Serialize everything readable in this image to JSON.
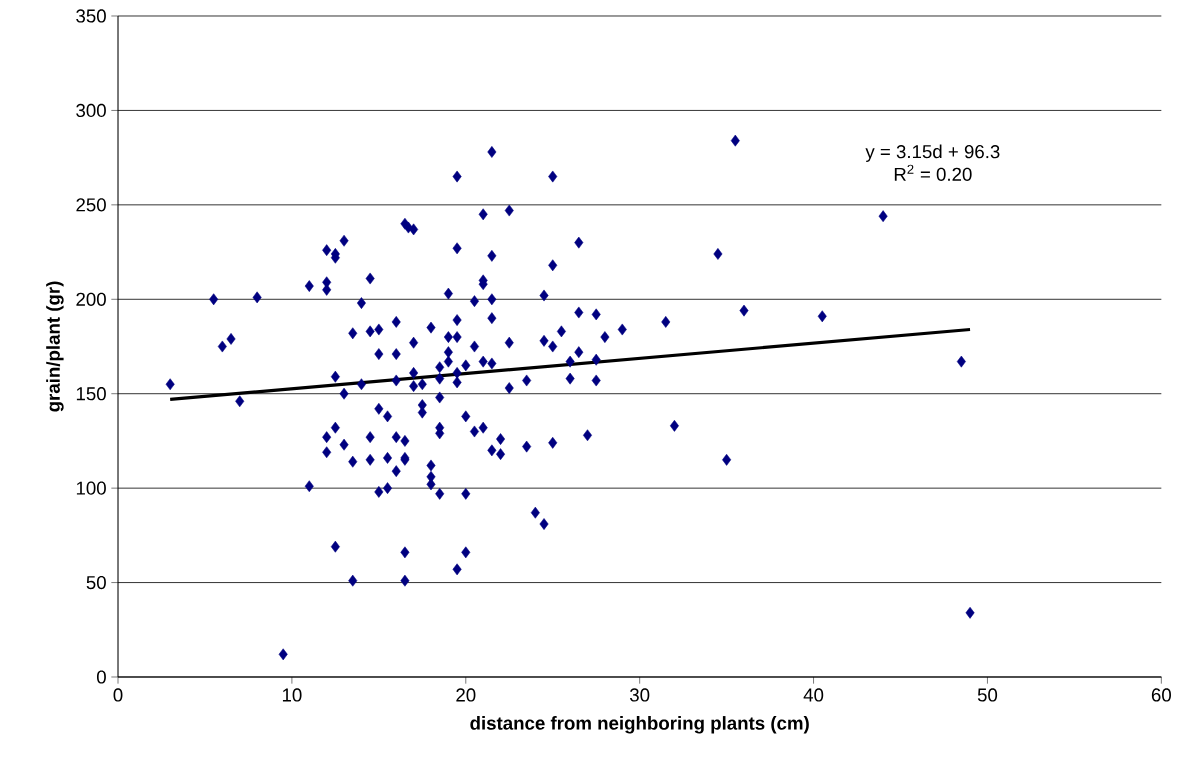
{
  "chart_data": {
    "type": "scatter",
    "xlabel": "distance from neighboring plants (cm)",
    "ylabel": "grain/plant (gr)",
    "annotations": [
      "y = 3.15d + 96.3",
      "R$^{2}$ = 0.20"
    ],
    "xlim": [
      0,
      60
    ],
    "xticks": [
      0,
      10,
      20,
      30,
      40,
      50,
      60
    ],
    "ylim": [
      0,
      350
    ],
    "yticks": [
      0,
      50,
      100,
      150,
      200,
      250,
      300,
      350
    ],
    "grid": "y",
    "marker": "diamond",
    "series": [
      {
        "color": "#000080",
        "x": [
          3,
          5.5,
          6,
          6.5,
          7,
          8,
          9.5,
          11,
          11,
          12,
          12,
          12,
          12.5,
          12.5,
          13,
          14,
          14.5,
          16.5,
          16.7,
          13.5,
          14.5,
          15,
          16,
          15,
          16,
          12.5,
          13,
          14,
          16,
          15,
          15.5,
          12.5,
          12,
          13,
          12,
          14.5,
          16,
          16.5,
          19.5,
          25,
          21.5,
          17,
          21,
          22.5,
          19.5,
          21.5,
          26.5,
          25,
          21,
          21,
          19,
          20.5,
          21.5,
          24.5,
          19.5,
          21.5,
          26.5,
          27.5,
          29,
          28,
          25.5,
          18,
          19,
          19.5,
          17,
          20.5,
          22.5,
          24.5,
          25,
          26.5,
          19,
          19,
          18.5,
          20,
          21,
          21.5,
          26,
          27.5,
          17,
          17,
          17.5,
          18.5,
          19.5,
          19.5,
          22.5,
          23.5,
          26,
          27.5,
          18.5,
          17.5,
          17.5,
          20,
          18.5,
          18.5,
          21,
          20.5,
          22,
          25,
          27,
          23.5,
          21.5,
          22,
          16.5,
          13.5,
          14.5,
          15.5,
          16.5,
          16,
          18,
          18,
          18,
          18.5,
          20,
          15,
          15.5,
          24,
          24.5,
          12.5,
          16.5,
          20,
          19.5,
          13.5,
          16.5,
          35.5,
          44,
          34.5,
          36,
          40.5,
          31.5,
          32,
          35,
          48.5,
          49
        ],
        "values": [
          155,
          200,
          175,
          179,
          146,
          201,
          12,
          101,
          207,
          209,
          205,
          226,
          222,
          224,
          231,
          198,
          211,
          240,
          238,
          182,
          183,
          184,
          188,
          171,
          171,
          159,
          150,
          155,
          157,
          142,
          138,
          132,
          127,
          123,
          119,
          127,
          127,
          125,
          265,
          265,
          278,
          237,
          245,
          247,
          227,
          223,
          230,
          218,
          210,
          208,
          203,
          199,
          200,
          202,
          189,
          190,
          193,
          192,
          184,
          180,
          183,
          185,
          180,
          180,
          177,
          175,
          177,
          178,
          175,
          172,
          172,
          167,
          164,
          165,
          167,
          166,
          167,
          168,
          161,
          154,
          155,
          158,
          161,
          156,
          153,
          157,
          158,
          157,
          148,
          144,
          140,
          138,
          132,
          129,
          132,
          130,
          126,
          124,
          128,
          122,
          120,
          118,
          116,
          114,
          115,
          116,
          115,
          109,
          112,
          106,
          102,
          97,
          97,
          98,
          100,
          87,
          81,
          69,
          66,
          66,
          57,
          51,
          51,
          284,
          244,
          224,
          194,
          191,
          188,
          133,
          115,
          167,
          34
        ]
      },
      {
        "type": "line",
        "color": "#000000",
        "marker": "none",
        "line_style": "solid",
        "x": [
          3,
          49
        ],
        "values": [
          147,
          184
        ]
      }
    ]
  }
}
